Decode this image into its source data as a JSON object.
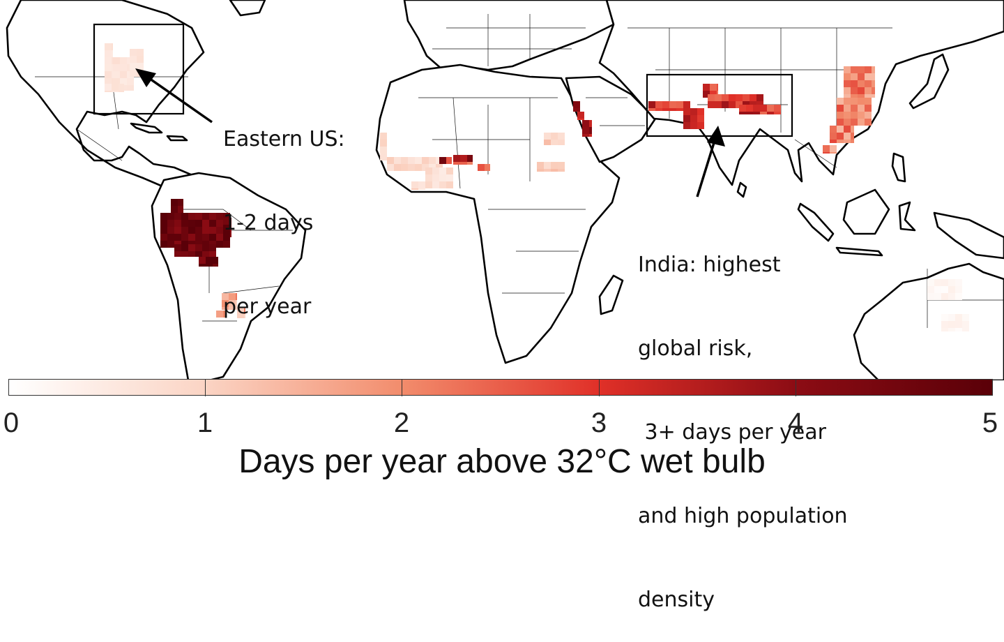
{
  "annotations": {
    "us": {
      "lines": [
        "Eastern US:",
        "1-2 days",
        "per year"
      ]
    },
    "india": {
      "lines": [
        "India: highest",
        "global risk,",
        " 3+ days per year",
        "and high population",
        "density"
      ]
    }
  },
  "colorbar": {
    "min": 0,
    "max": 5,
    "tick_labels": [
      "0",
      "1",
      "2",
      "3",
      "4",
      "5"
    ],
    "title": "Days per year above 32°C wet bulb",
    "colors": [
      "#ffffff",
      "#fbd4c4",
      "#f28c6c",
      "#e03028",
      "#8c0c14",
      "#5a0008"
    ]
  },
  "regions": [
    {
      "name": "eastern-us",
      "level": 0.7
    },
    {
      "name": "amazon",
      "level": 5.0
    },
    {
      "name": "paraguay",
      "level": 2.0
    },
    {
      "name": "west-africa",
      "level": 1.0
    },
    {
      "name": "nigeria-chad",
      "level": 4.0
    },
    {
      "name": "sudan",
      "level": 1.2
    },
    {
      "name": "red-sea-coast",
      "level": 4.0
    },
    {
      "name": "indus-ganges",
      "level": 3.5
    },
    {
      "name": "east-china",
      "level": 2.5
    },
    {
      "name": "northern-australia",
      "level": 0.3
    }
  ]
}
